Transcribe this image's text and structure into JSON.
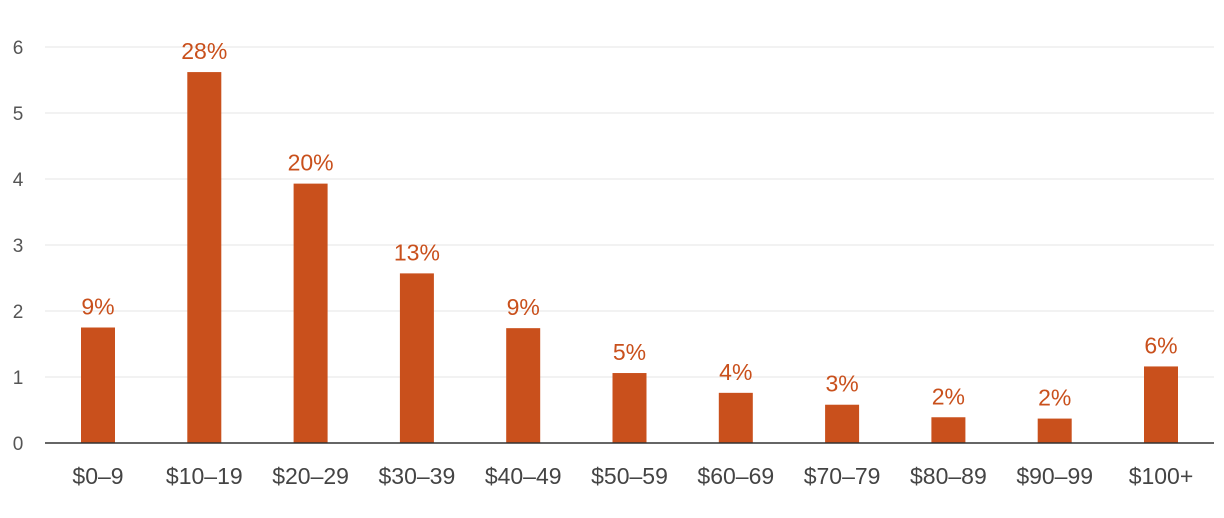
{
  "chart_data": {
    "type": "bar",
    "title": "",
    "xlabel": "",
    "ylabel": "",
    "categories": [
      "$0–9",
      "$10–19",
      "$20–29",
      "$30–39",
      "$40–49",
      "$50–59",
      "$60–69",
      "$70–79",
      "$80–89",
      "$90–99",
      "$100+"
    ],
    "values": [
      1.75,
      5.62,
      3.93,
      2.57,
      1.74,
      1.06,
      0.76,
      0.58,
      0.39,
      0.37,
      1.16
    ],
    "data_labels": [
      "9%",
      "28%",
      "20%",
      "13%",
      "9%",
      "5%",
      "4%",
      "3%",
      "2%",
      "2%",
      "6%"
    ],
    "ylim": [
      0,
      6
    ],
    "yticks": [
      "0",
      "1",
      "2",
      "3",
      "4",
      "5",
      "6"
    ],
    "grid": true,
    "bar_color": "#c9501c",
    "label_color": "#c9501c"
  }
}
